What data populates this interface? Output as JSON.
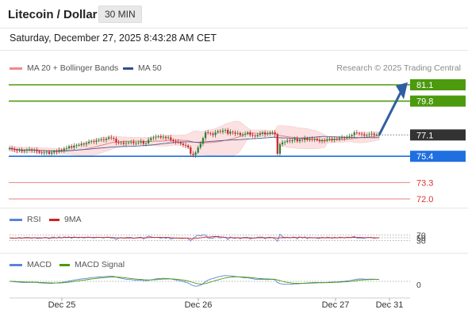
{
  "header": {
    "title": "Litecoin / Dollar",
    "timeframe": "30 MIN",
    "timestamp": "Saturday, December 27, 2025 8:43:28 AM CET"
  },
  "legend": {
    "ma20_bb": "MA 20 + Bollinger Bands",
    "ma50": "MA 50",
    "credit": "Research © 2025 Trading Central"
  },
  "colors": {
    "resistance": "#4c9a0e",
    "support": "#1f6fe0",
    "target_red": "#e26262",
    "current": "#333333",
    "arrow": "#2f5fa3",
    "bollinger_fill": "#fbe1e1",
    "ma20": "#e57878",
    "ma50": "#4a5f9a",
    "rsi": "#5a84d8",
    "rsi_ma": "#cc2222",
    "macd": "#5a84d8",
    "macd_signal": "#4c9a0e"
  },
  "chart_data": {
    "type": "candlestick",
    "price_levels": [
      {
        "value": 81.1,
        "label": "81.1",
        "kind": "resistance"
      },
      {
        "value": 79.8,
        "label": "79.8",
        "kind": "resistance"
      },
      {
        "value": 77.1,
        "label": "77.1",
        "kind": "current"
      },
      {
        "value": 75.4,
        "label": "75.4",
        "kind": "support"
      },
      {
        "value": 73.3,
        "label": "73.3",
        "kind": "target"
      },
      {
        "value": 72.0,
        "label": "72.0",
        "kind": "target"
      }
    ],
    "price_range": [
      71.5,
      81.7
    ],
    "x_ticks": [
      "Dec 25",
      "Dec 26",
      "Dec 27",
      "Dec 31"
    ],
    "close": [
      76.05,
      75.95,
      75.9,
      75.85,
      75.9,
      75.8,
      75.85,
      75.9,
      75.95,
      75.85,
      75.9,
      75.8,
      75.7,
      75.65,
      75.7,
      75.75,
      75.6,
      75.7,
      75.8,
      75.75,
      75.9,
      75.85,
      76.0,
      76.05,
      76.2,
      76.1,
      76.25,
      76.3,
      76.3,
      76.4,
      76.35,
      76.45,
      76.55,
      76.6,
      76.55,
      76.65,
      76.7,
      76.75,
      76.7,
      76.8,
      76.9,
      76.85,
      76.8,
      76.5,
      76.45,
      76.5,
      76.4,
      76.45,
      76.5,
      76.55,
      76.45,
      76.45,
      76.5,
      76.6,
      76.4,
      76.45,
      76.7,
      76.85,
      76.9,
      76.95,
      77.0,
      76.9,
      76.95,
      76.85,
      76.9,
      76.7,
      76.6,
      76.55,
      76.5,
      76.4,
      76.3,
      76.25,
      76.1,
      75.6,
      75.5,
      75.7,
      76.1,
      76.4,
      76.85,
      77.3,
      77.25,
      77.2,
      77.1,
      77.3,
      77.4,
      77.35,
      77.45,
      77.5,
      77.2,
      77.35,
      77.3,
      77.2,
      77.25,
      77.1,
      77.15,
      77.2,
      77.3,
      77.1,
      77.05,
      77.0,
      77.1,
      77.2,
      77.3,
      77.15,
      77.2,
      77.3,
      77.3,
      77.15,
      75.6,
      76.35,
      76.5,
      76.55,
      76.65,
      76.6,
      76.7,
      76.8,
      76.6,
      76.75,
      76.7,
      76.85,
      76.7,
      76.8,
      76.75,
      76.8,
      76.7,
      76.6,
      76.7,
      76.65,
      76.75,
      76.8,
      76.7,
      76.8,
      76.75,
      76.85,
      76.9,
      76.85,
      76.95,
      77.0,
      77.1,
      77.3,
      77.25,
      77.2,
      77.15,
      77.05,
      77.1,
      77.15,
      77.2,
      77.1,
      77.1,
      77.1
    ],
    "rsi": {
      "levels": [
        "70",
        "50",
        "30"
      ],
      "series": [
        "RSI",
        "9MA"
      ]
    },
    "macd": {
      "zero_label": "0",
      "series": [
        "MACD",
        "MACD Signal"
      ]
    }
  }
}
